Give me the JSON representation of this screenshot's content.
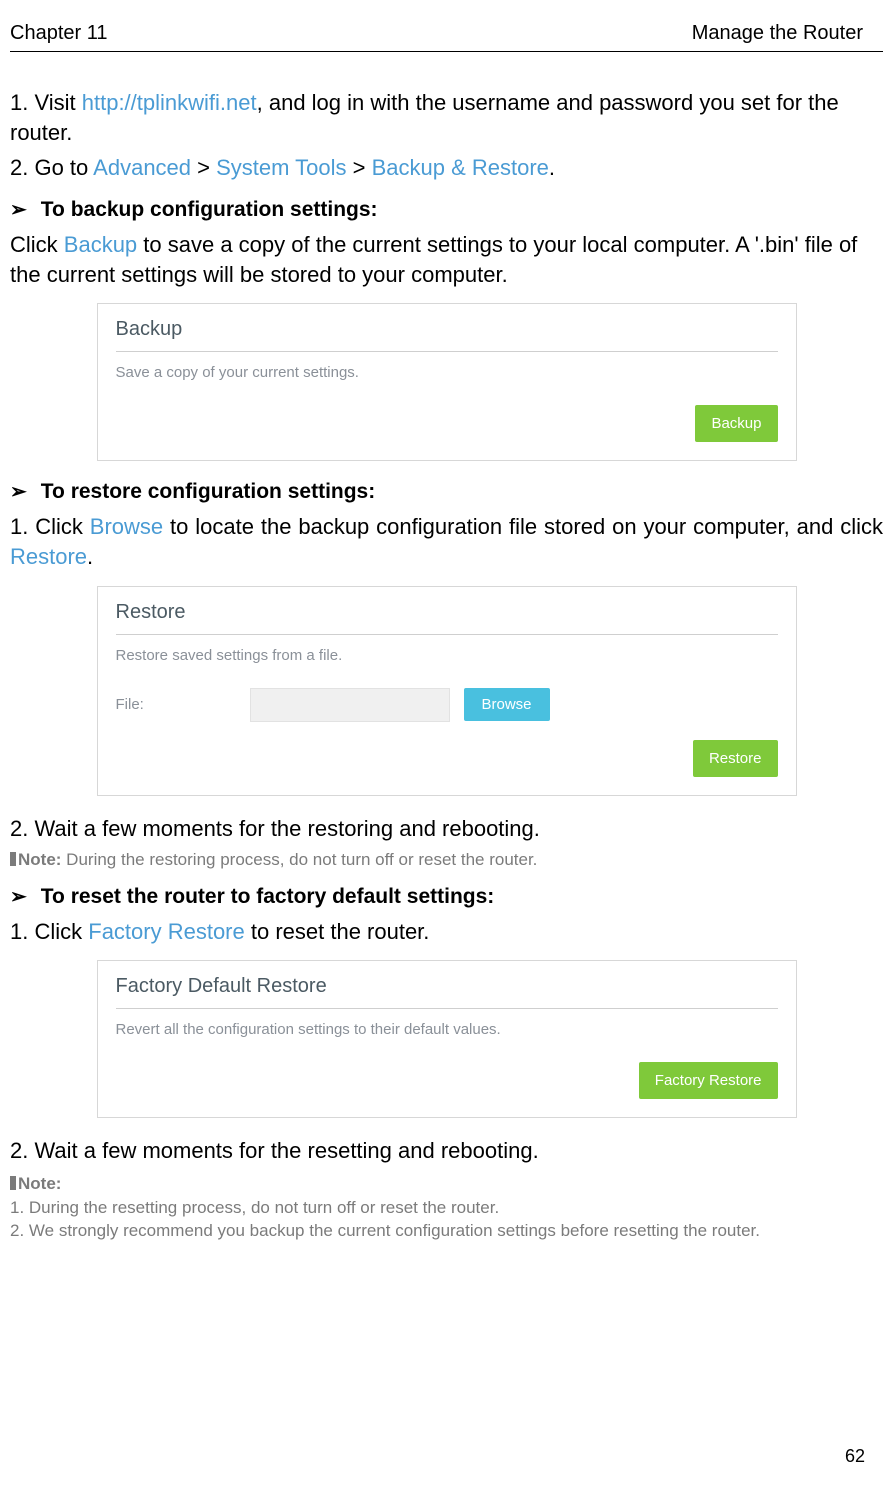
{
  "header": {
    "chapter": "Chapter 11",
    "title": "Manage the Router"
  },
  "colors": {
    "link": "#4a9bd4",
    "text": "#000000",
    "muted": "#7b7b7b",
    "panel_border": "#d7d7d7",
    "panel_title": "#4b5a63",
    "panel_desc": "#8a9098",
    "btn_green": "#7fc93a",
    "btn_blue": "#49c0df",
    "file_bg": "#f0f0f0"
  },
  "steps_top": {
    "s1_pre": "1. Visit ",
    "s1_link": "http://tplinkwifi.net",
    "s1_post": ", and log in with the username and password you set for the router.",
    "s2_pre": "2. Go to ",
    "s2_a": "Advanced",
    "s2_sep1": " > ",
    "s2_b": "System Tools",
    "s2_sep2": " > ",
    "s2_c": "Backup & Restore",
    "s2_end": "."
  },
  "heading_backup": "To backup configuration settings:",
  "para_backup_pre": "Click ",
  "para_backup_link": "Backup",
  "para_backup_post": " to save a copy of the current settings to your local computer. A '.bin' file of the current settings will be stored to your computer.",
  "panel_backup": {
    "title": "Backup",
    "desc": "Save a copy of your current settings.",
    "btn": "Backup"
  },
  "heading_restore": "To restore configuration settings:",
  "restore_s1_pre": "1. Click ",
  "restore_s1_a": "Browse",
  "restore_s1_mid": " to locate the backup configuration file stored on your computer, and click ",
  "restore_s1_b": "Restore",
  "restore_s1_end": ".",
  "panel_restore": {
    "title": "Restore",
    "desc": "Restore saved settings from a file.",
    "file_label": "File:",
    "browse": "Browse",
    "btn": "Restore"
  },
  "restore_s2": "2. Wait a few moments for the restoring and rebooting.",
  "note1_label": "Note:",
  "note1_text": " During the restoring process, do not turn off or reset the router.",
  "heading_reset": "To reset the router to factory default settings:",
  "reset_s1_pre": "1. Click ",
  "reset_s1_a": "Factory Restore",
  "reset_s1_post": " to reset the router.",
  "panel_factory": {
    "title": "Factory Default Restore",
    "desc": "Revert all the configuration settings to their default values.",
    "btn": "Factory Restore"
  },
  "reset_s2": "2. Wait a few moments for the resetting and rebooting.",
  "note2_label": "Note:",
  "note2_1": "1.  During the resetting process, do not turn off or reset the router.",
  "note2_2": "2.  We strongly recommend you backup the current configuration settings before resetting the router.",
  "page_number": "62"
}
